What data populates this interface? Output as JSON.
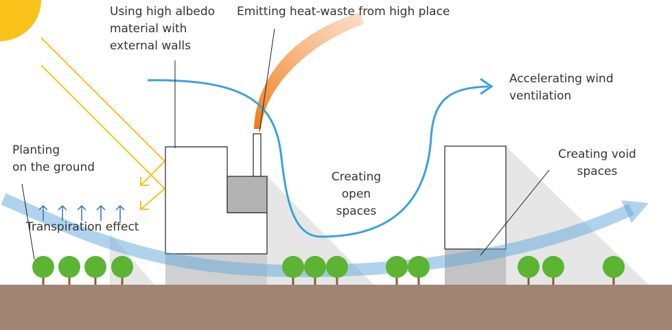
{
  "labels": [
    {
      "lines": [
        "Using high albedo",
        "material with",
        "external walls"
      ]
    },
    {
      "lines": [
        "Emitting heat-waste from high place"
      ]
    },
    {
      "lines": [
        "Accelerating wind",
        "ventilation"
      ]
    },
    {
      "lines": [
        "Planting",
        "on the ground"
      ]
    },
    {
      "lines": [
        "Transpiration effect"
      ]
    },
    {
      "lines": [
        "Creating",
        "open",
        "spaces"
      ]
    },
    {
      "lines": [
        "Creating void",
        "spaces"
      ]
    }
  ]
}
